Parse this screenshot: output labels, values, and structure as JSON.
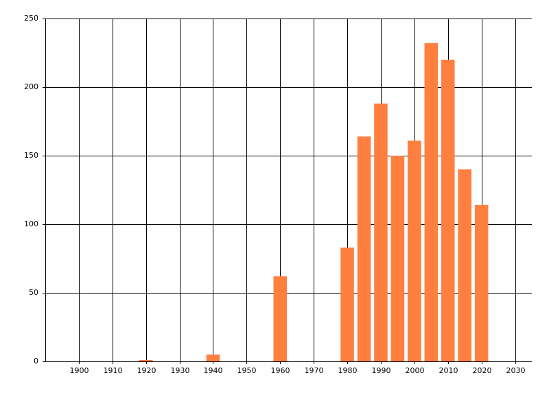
{
  "chart_data": {
    "type": "bar",
    "x": [
      1920,
      1940,
      1960,
      1980,
      1985,
      1990,
      1995,
      2000,
      2005,
      2010,
      2015,
      2020
    ],
    "values": [
      1,
      5,
      62,
      83,
      164,
      188,
      150,
      161,
      232,
      220,
      140,
      114
    ],
    "color": "#ff7f3f",
    "xlim": [
      1890,
      2035
    ],
    "xticks": [
      1900,
      1910,
      1920,
      1930,
      1940,
      1950,
      1960,
      1970,
      1980,
      1990,
      2000,
      2010,
      2020,
      2030
    ],
    "ylim": [
      0,
      250
    ],
    "yticks": [
      0,
      50,
      100,
      150,
      200,
      250
    ],
    "grid": true
  }
}
